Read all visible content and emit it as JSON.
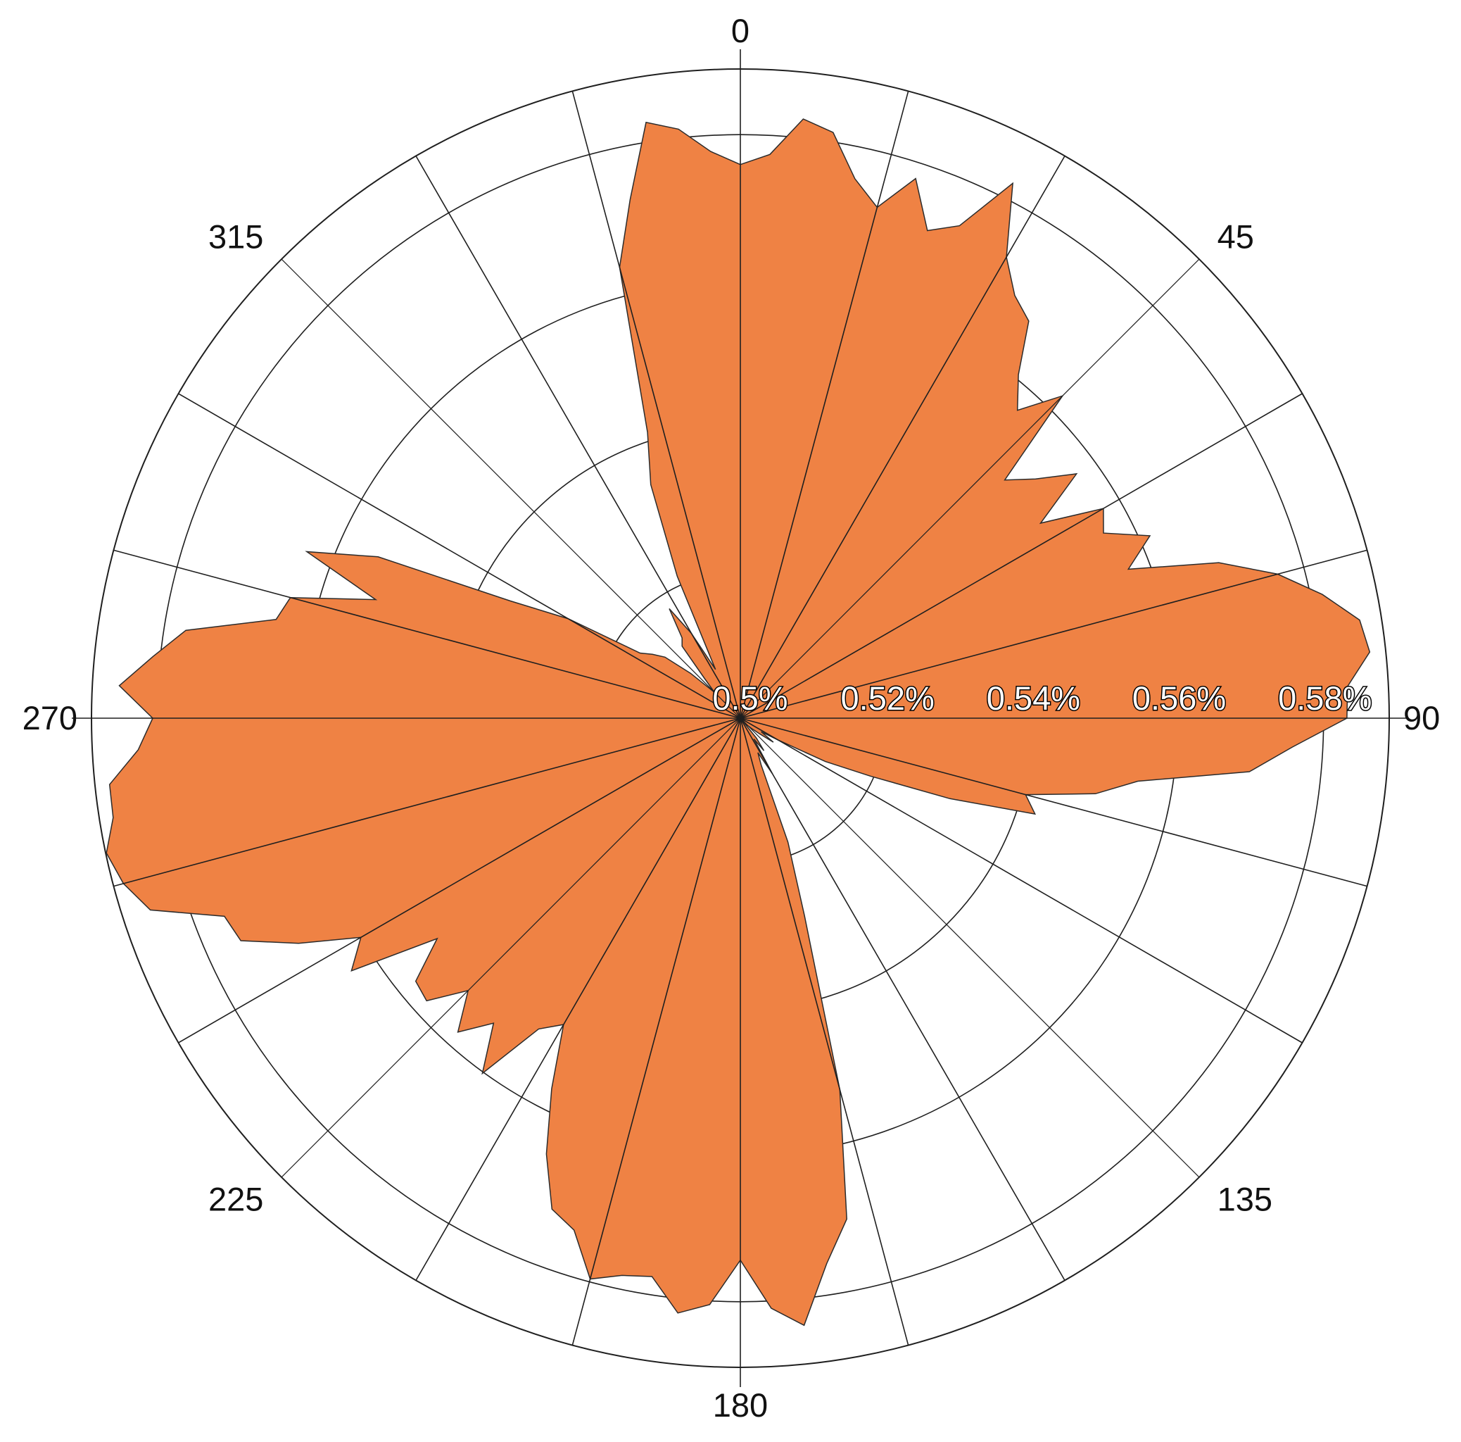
{
  "chart_data": {
    "type": "polar-area",
    "title": "",
    "angle_unit": "degrees",
    "angle_start": "top",
    "angle_direction": "clockwise",
    "angle_spokes_deg": [
      0,
      15,
      30,
      45,
      60,
      75,
      90,
      105,
      120,
      135,
      150,
      165,
      180,
      195,
      210,
      225,
      240,
      255,
      270,
      285,
      300,
      315,
      330,
      345
    ],
    "angle_tick_labels": [
      {
        "deg": 0,
        "text": "0"
      },
      {
        "deg": 45,
        "text": "45"
      },
      {
        "deg": 90,
        "text": "90"
      },
      {
        "deg": 135,
        "text": "135"
      },
      {
        "deg": 180,
        "text": "180"
      },
      {
        "deg": 225,
        "text": "225"
      },
      {
        "deg": 270,
        "text": "270"
      },
      {
        "deg": 315,
        "text": "315"
      }
    ],
    "radial_range": [
      0.5,
      0.589
    ],
    "radial_ticks": [
      0.5,
      0.52,
      0.54,
      0.56,
      0.58
    ],
    "radial_tick_labels": [
      "0.5%",
      "0.52%",
      "0.54%",
      "0.56%",
      "0.58%"
    ],
    "grid": true,
    "colors": {
      "fill": "#ef8244",
      "outline": "#2b2b2b",
      "grid": "#1f1f1f",
      "background": "#ffffff"
    },
    "series": [
      {
        "points": [
          [
            0,
            0.5759
          ],
          [
            3,
            0.5774
          ],
          [
            6,
            0.5826
          ],
          [
            9,
            0.5813
          ],
          [
            12,
            0.5756
          ],
          [
            15,
            0.5725
          ],
          [
            18,
            0.5778
          ],
          [
            21,
            0.5716
          ],
          [
            24,
            0.5739
          ],
          [
            27,
            0.5823
          ],
          [
            30,
            0.573
          ],
          [
            33,
            0.5691
          ],
          [
            36,
            0.5673
          ],
          [
            39,
            0.5606
          ],
          [
            42,
            0.5568
          ],
          [
            45,
            0.5625
          ],
          [
            48,
            0.5488
          ],
          [
            51,
            0.5521
          ],
          [
            54,
            0.557
          ],
          [
            57,
            0.5491
          ],
          [
            60,
            0.5575
          ],
          [
            63,
            0.5559
          ],
          [
            66,
            0.5615
          ],
          [
            69,
            0.557
          ],
          [
            72,
            0.569
          ],
          [
            75,
            0.5763
          ],
          [
            78,
            0.5816
          ],
          [
            81,
            0.586
          ],
          [
            84,
            0.5868
          ],
          [
            87,
            0.5834
          ],
          [
            90,
            0.5832
          ],
          [
            93,
            0.5758
          ],
          [
            96,
            0.5702
          ],
          [
            99,
            0.5552
          ],
          [
            102,
            0.5498
          ],
          [
            105,
            0.5405
          ],
          [
            108,
            0.5425
          ],
          [
            111,
            0.5308
          ],
          [
            114,
            0.5195
          ],
          [
            117,
            0.5131
          ],
          [
            120,
            0.506
          ],
          [
            123,
            0.5034
          ],
          [
            126,
            0.5056
          ],
          [
            129,
            0.5034
          ],
          [
            132,
            0.5022
          ],
          [
            135,
            0.5014
          ],
          [
            138,
            0.5001
          ],
          [
            141,
            0.5035
          ],
          [
            144,
            0.5055
          ],
          [
            147,
            0.5034
          ],
          [
            150,
            0.5088
          ],
          [
            153,
            0.5053
          ],
          [
            156,
            0.507
          ],
          [
            159,
            0.5182
          ],
          [
            162,
            0.5285
          ],
          [
            165,
            0.5527
          ],
          [
            168,
            0.5702
          ],
          [
            171,
            0.5757
          ],
          [
            174,
            0.5837
          ],
          [
            177,
            0.581
          ],
          [
            180,
            0.5743
          ],
          [
            183,
            0.5805
          ],
          [
            186,
            0.582
          ],
          [
            189,
            0.5775
          ],
          [
            192,
            0.5781
          ],
          [
            195,
            0.5796
          ],
          [
            198,
            0.5738
          ],
          [
            201,
            0.5721
          ],
          [
            204,
            0.5654
          ],
          [
            207,
            0.557
          ],
          [
            210,
            0.5485
          ],
          [
            213,
            0.5508
          ],
          [
            216,
            0.5602
          ],
          [
            219,
            0.5538
          ],
          [
            222,
            0.5579
          ],
          [
            225,
            0.5528
          ],
          [
            228,
            0.5579
          ],
          [
            231,
            0.5573
          ],
          [
            234,
            0.5514
          ],
          [
            237,
            0.5636
          ],
          [
            240,
            0.5601
          ],
          [
            243,
            0.568
          ],
          [
            246,
            0.575
          ],
          [
            249,
            0.5758
          ],
          [
            252,
            0.5851
          ],
          [
            255,
            0.5876
          ],
          [
            258,
            0.5889
          ],
          [
            261,
            0.5871
          ],
          [
            264,
            0.587
          ],
          [
            267,
            0.5827
          ],
          [
            270,
            0.5806
          ],
          [
            273,
            0.5853
          ],
          [
            276,
            0.581
          ],
          [
            279,
            0.577
          ],
          [
            282,
            0.5651
          ],
          [
            285,
            0.5639
          ],
          [
            288,
            0.5526
          ],
          [
            291,
            0.5637
          ],
          [
            294,
            0.5544
          ],
          [
            297,
            0.5354
          ],
          [
            300,
            0.5273
          ],
          [
            303,
            0.5164
          ],
          [
            306,
            0.5149
          ],
          [
            309,
            0.5133
          ],
          [
            312,
            0.5092
          ],
          [
            315,
            0.505
          ],
          [
            318,
            0.5074
          ],
          [
            321,
            0.5127
          ],
          [
            324,
            0.5136
          ],
          [
            327,
            0.5179
          ],
          [
            330,
            0.5134
          ],
          [
            333,
            0.5075
          ],
          [
            336,
            0.5213
          ],
          [
            339,
            0.5343
          ],
          [
            342,
            0.5412
          ],
          [
            345,
            0.564
          ],
          [
            348,
            0.5727
          ],
          [
            351,
            0.5827
          ],
          [
            354,
            0.5812
          ],
          [
            357,
            0.5778
          ]
        ]
      }
    ]
  }
}
